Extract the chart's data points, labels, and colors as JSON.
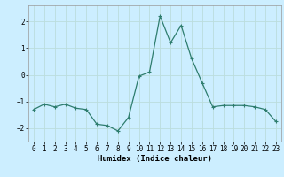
{
  "x": [
    0,
    1,
    2,
    3,
    4,
    5,
    6,
    7,
    8,
    9,
    10,
    11,
    12,
    13,
    14,
    15,
    16,
    17,
    18,
    19,
    20,
    21,
    22,
    23
  ],
  "y": [
    -1.3,
    -1.1,
    -1.2,
    -1.1,
    -1.25,
    -1.3,
    -1.85,
    -1.9,
    -2.1,
    -1.6,
    -0.05,
    0.1,
    2.2,
    1.2,
    1.85,
    0.6,
    -0.3,
    -1.2,
    -1.15,
    -1.15,
    -1.15,
    -1.2,
    -1.3,
    -1.75
  ],
  "line_color": "#2e7d6e",
  "marker": "+",
  "marker_size": 3,
  "marker_linewidth": 0.8,
  "bg_color": "#cceeff",
  "grid_color": "#bbdddd",
  "xlabel": "Humidex (Indice chaleur)",
  "xlim": [
    -0.5,
    23.5
  ],
  "ylim": [
    -2.5,
    2.6
  ],
  "yticks": [
    -2,
    -1,
    0,
    1,
    2
  ],
  "xticks": [
    0,
    1,
    2,
    3,
    4,
    5,
    6,
    7,
    8,
    9,
    10,
    11,
    12,
    13,
    14,
    15,
    16,
    17,
    18,
    19,
    20,
    21,
    22,
    23
  ],
  "tick_fontsize": 5.5,
  "xlabel_fontsize": 6.5,
  "line_width": 0.9
}
